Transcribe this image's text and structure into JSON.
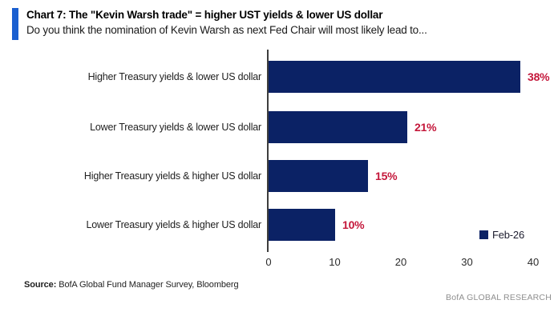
{
  "header": {
    "title": "Chart 7: The \"Kevin Warsh trade\" = higher UST yields & lower US dollar",
    "subtitle": "Do you think the nomination of Kevin Warsh as next Fed Chair will most likely lead to..."
  },
  "chart_data": {
    "type": "bar",
    "orientation": "horizontal",
    "categories": [
      "Higher Treasury yields & lower US dollar",
      "Lower Treasury yields & lower US dollar",
      "Higher Treasury yields & higher US dollar",
      "Lower Treasury yields & higher US dollar"
    ],
    "series": [
      {
        "name": "Feb-26",
        "values": [
          38,
          21,
          15,
          10
        ]
      }
    ],
    "value_labels": [
      "38%",
      "21%",
      "15%",
      "10%"
    ],
    "x_ticks": [
      0,
      10,
      20,
      30,
      40
    ],
    "xlim": [
      0,
      42
    ],
    "grid": false,
    "legend_position": "bottom-right",
    "colors": {
      "bar": "#0b2265",
      "value_label": "#c4173a",
      "accent_bar": "#1a5fd0"
    }
  },
  "footer": {
    "source_label": "Source:",
    "source_text": " BofA Global Fund Manager Survey, Bloomberg",
    "brand": "BofA GLOBAL RESEARCH"
  }
}
